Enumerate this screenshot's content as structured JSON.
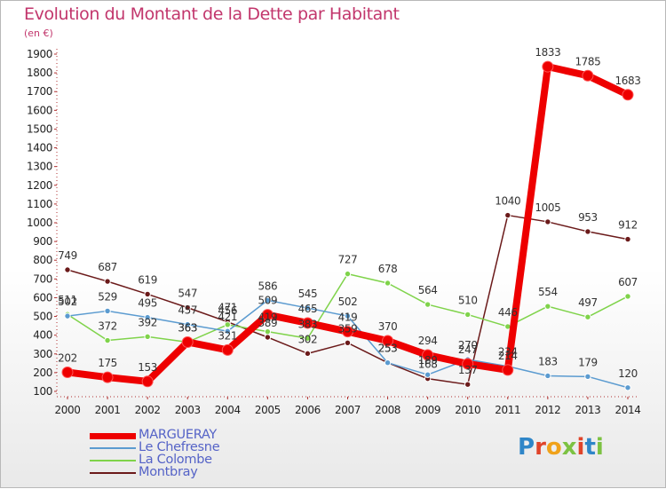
{
  "title": "Evolution du Montant de la Dette par Habitant",
  "subtitle": "(en €)",
  "logo_text": "Proxiti",
  "chart_data": {
    "type": "line",
    "title": "Evolution du Montant de la Dette par Habitant",
    "subtitle": "(en €)",
    "x": [
      "2000",
      "2001",
      "2002",
      "2003",
      "2004",
      "2005",
      "2006",
      "2007",
      "2008",
      "2009",
      "2010",
      "2011",
      "2012",
      "2013",
      "2014"
    ],
    "ylim": [
      100,
      1900
    ],
    "yticks": [
      100,
      200,
      300,
      400,
      500,
      600,
      700,
      800,
      900,
      1000,
      1100,
      1200,
      1300,
      1400,
      1500,
      1600,
      1700,
      1800,
      1900
    ],
    "grid": false,
    "legend_position": "bottom-left",
    "series": [
      {
        "name": "MARGUERAY",
        "color": "#ee0000",
        "values": [
          202,
          175,
          153,
          363,
          321,
          509,
          465,
          419,
          370,
          294,
          247,
          214,
          1833,
          1785,
          1683
        ]
      },
      {
        "name": "Le Chefresne",
        "color": "#5b9bd0",
        "values": [
          502,
          529,
          495,
          457,
          421,
          586,
          545,
          502,
          253,
          189,
          270,
          234,
          183,
          179,
          120
        ]
      },
      {
        "name": "La Colombe",
        "color": "#7fd34a",
        "values": [
          511,
          372,
          392,
          363,
          456,
          419,
          383,
          727,
          678,
          564,
          510,
          446,
          554,
          497,
          607
        ]
      },
      {
        "name": "Montbray",
        "color": "#6b1a1a",
        "values": [
          749,
          687,
          619,
          547,
          471,
          389,
          302,
          359,
          253,
          168,
          137,
          1040,
          1005,
          953,
          912
        ]
      }
    ]
  }
}
